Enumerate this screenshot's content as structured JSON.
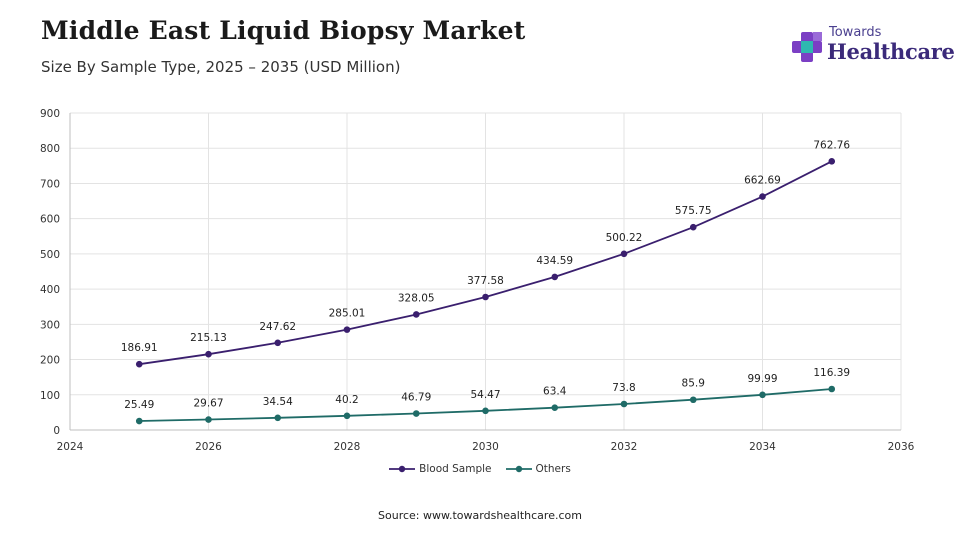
{
  "header": {
    "title": "Middle East Liquid Biopsy Market",
    "subtitle": "Size By Sample Type, 2025 – 2035 (USD Million)"
  },
  "logo": {
    "top_text": "Towards",
    "main_text": "Healthcare",
    "colors": {
      "cross_purple": "#7b3fc4",
      "cross_teal": "#2fb8b0",
      "text": "#3b2a7a"
    }
  },
  "chart_data": {
    "type": "line",
    "x_ticks": [
      "2024",
      "2026",
      "2028",
      "2030",
      "2032",
      "2034",
      "2036"
    ],
    "y_ticks": [
      "0",
      "100",
      "200",
      "300",
      "400",
      "500",
      "600",
      "700",
      "800",
      "900"
    ],
    "xlim": [
      2024,
      2036
    ],
    "ylim": [
      0,
      900
    ],
    "grid": true,
    "legend_position": "bottom",
    "x": [
      2025,
      2026,
      2027,
      2028,
      2029,
      2030,
      2031,
      2032,
      2033,
      2034,
      2035
    ],
    "series": [
      {
        "name": "Blood Sample",
        "color": "#3a1f6e",
        "values": [
          186.91,
          215.13,
          247.62,
          285.01,
          328.05,
          377.58,
          434.59,
          500.22,
          575.75,
          662.69,
          762.76
        ],
        "labels": [
          "186.91",
          "215.13",
          "247.62",
          "285.01",
          "328.05",
          "377.58",
          "434.59",
          "500.22",
          "575.75",
          "662.69",
          "762.76"
        ]
      },
      {
        "name": "Others",
        "color": "#1f6b67",
        "values": [
          25.49,
          29.67,
          34.54,
          40.2,
          46.79,
          54.47,
          63.4,
          73.8,
          85.9,
          99.99,
          116.39
        ],
        "labels": [
          "25.49",
          "29.67",
          "34.54",
          "40.2",
          "46.79",
          "54.47",
          "63.4",
          "73.8",
          "85.9",
          "99.99",
          "116.39"
        ]
      }
    ]
  },
  "footer": {
    "source": "Source: www.towardshealthcare.com"
  }
}
